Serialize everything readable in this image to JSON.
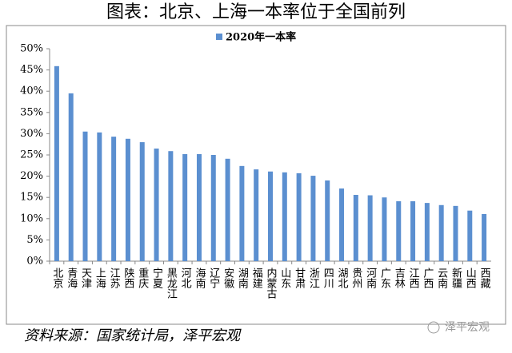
{
  "chart_data": {
    "type": "bar",
    "title": "图表：北京、上海一本率位于全国前列",
    "categories": [
      "北京",
      "青海",
      "天津",
      "上海",
      "江苏",
      "陕西",
      "重庆",
      "宁夏",
      "黑龙江",
      "河北",
      "海南",
      "辽宁",
      "安徽",
      "湖南",
      "福建",
      "内蒙古",
      "山东",
      "甘肃",
      "浙江",
      "四川",
      "湖北",
      "贵州",
      "河南",
      "广东",
      "吉林",
      "江西",
      "广西",
      "云南",
      "新疆",
      "山西",
      "西藏"
    ],
    "series": [
      {
        "name": "2020年一本率",
        "color": "#5b8fd0",
        "values": [
          45.9,
          39.5,
          30.5,
          30.3,
          29.3,
          28.8,
          28.0,
          26.5,
          25.9,
          25.2,
          25.2,
          25.0,
          24.1,
          22.4,
          21.6,
          21.1,
          20.9,
          20.7,
          20.1,
          19.0,
          17.1,
          15.6,
          15.5,
          15.0,
          14.1,
          14.1,
          13.7,
          13.2,
          13.0,
          11.9,
          11.1
        ]
      }
    ],
    "ylim": [
      0,
      50
    ],
    "yticks": [
      {
        "value": 0,
        "label": "0%"
      },
      {
        "value": 5,
        "label": "5%"
      },
      {
        "value": 10,
        "label": "10%"
      },
      {
        "value": 15,
        "label": "15%"
      },
      {
        "value": 20,
        "label": "20%"
      },
      {
        "value": 25,
        "label": "25%"
      },
      {
        "value": 30,
        "label": "30%"
      },
      {
        "value": 35,
        "label": "35%"
      },
      {
        "value": 40,
        "label": "40%"
      },
      {
        "value": 45,
        "label": "45%"
      },
      {
        "value": 50,
        "label": "50%"
      }
    ],
    "source": "资料来源：国家统计局，泽平宏观",
    "watermark": "泽平宏观"
  }
}
